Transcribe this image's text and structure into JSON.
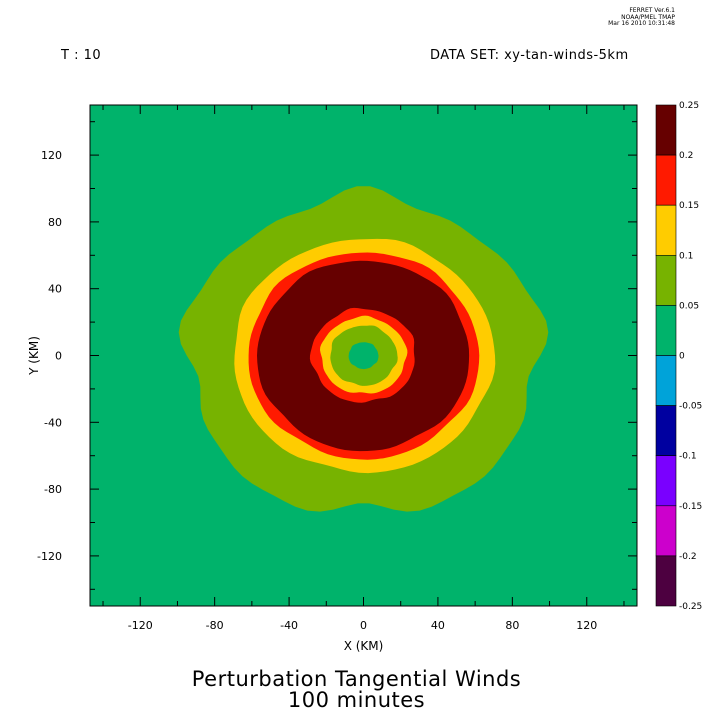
{
  "header": {
    "time_label": "T : 10",
    "dataset_label": "DATA SET: xy-tan-winds-5km",
    "stamp_line1": "FERRET Ver.6.1",
    "stamp_line2": "NOAA/PMEL TMAP",
    "stamp_line3": "Mar 16 2010 10:31:48"
  },
  "chart_data": {
    "type": "heatmap",
    "title": "Perturbation Tangential Winds",
    "subtitle": "100 minutes",
    "xlabel": "X (KM)",
    "ylabel": "Y (KM)",
    "xlim": [
      -147,
      147
    ],
    "ylim": [
      -150,
      150
    ],
    "xticks": [
      -120,
      -80,
      -40,
      0,
      40,
      80,
      120
    ],
    "yticks": [
      -120,
      -80,
      -40,
      0,
      40,
      80,
      120
    ],
    "xtick_labels": [
      "-120",
      "-80",
      "-40",
      "0",
      "40",
      "80",
      "120"
    ],
    "ytick_labels": [
      "-120",
      "-80",
      "-40",
      "0",
      "40",
      "80",
      "120"
    ],
    "colorbar_levels": [
      "0.25",
      "0.2",
      "0.15",
      "0.1",
      "0.05",
      "0",
      "-0.05",
      "-0.1",
      "-0.15",
      "-0.2",
      "-0.25"
    ],
    "colorbar_colors": [
      "#660000",
      "#ff1a00",
      "#ffcc00",
      "#77b300",
      "#00b36b",
      "#00a3d9",
      "#0000a0",
      "#7a00ff",
      "#cc00cc",
      "#4d0040"
    ],
    "background_level": "0 to 0.05",
    "field": {
      "center": [
        0,
        0
      ],
      "regions": [
        {
          "level": "0.05 to 0.1",
          "shape": "ring",
          "outer_radius_km": 95,
          "inner_radius_km": 70
        },
        {
          "level": "0.1 to 0.15",
          "shape": "ring",
          "outer_radius_km": 70,
          "inner_radius_km": 62
        },
        {
          "level": "0.15 to 0.2",
          "shape": "ring",
          "outer_radius_km": 62,
          "inner_radius_km": 57
        },
        {
          "level": "0.2 to 0.25",
          "shape": "ring",
          "outer_radius_km": 57,
          "inner_radius_km": 28
        },
        {
          "level": "0.15 to 0.2",
          "shape": "ring",
          "outer_radius_km": 28,
          "inner_radius_km": 23
        },
        {
          "level": "0.1 to 0.15",
          "shape": "ring",
          "outer_radius_km": 23,
          "inner_radius_km": 18
        },
        {
          "level": "0.05 to 0.1",
          "shape": "disc",
          "outer_radius_km": 18
        },
        {
          "level": "0 to 0.05",
          "shape": "disc",
          "outer_radius_km": 8
        }
      ],
      "max_patches": [
        {
          "level": "> 0.25",
          "x_range": [
            -45,
            -35
          ],
          "y_range": [
            -15,
            25
          ]
        },
        {
          "level": "> 0.25",
          "x_range": [
            -30,
            5
          ],
          "y_range": [
            35,
            42
          ]
        },
        {
          "level": "> 0.25",
          "x_range": [
            -30,
            -25
          ],
          "y_range": [
            -35,
            -28
          ]
        },
        {
          "level": "> 0.25",
          "x_range": [
            25,
            30
          ],
          "y_range": [
            15,
            25
          ]
        }
      ]
    }
  }
}
